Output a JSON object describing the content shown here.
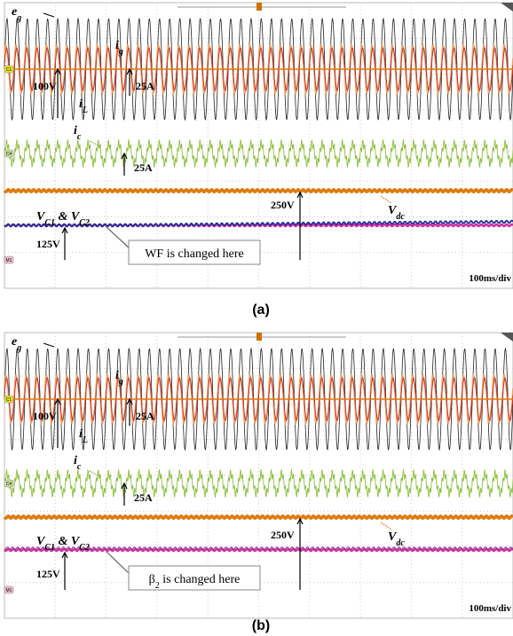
{
  "panels": [
    {
      "caption": "(a)",
      "timebase": "100ms/div",
      "channel_tags": [
        "C1",
        "C4",
        "M1"
      ],
      "labels": [
        {
          "parts": [
            {
              "text": "e"
            },
            {
              "sub": "g"
            }
          ]
        },
        {
          "parts": [
            {
              "text": "i"
            },
            {
              "sub": "g"
            }
          ]
        },
        {
          "parts": [
            {
              "text": "i"
            },
            {
              "sub": "L"
            }
          ]
        },
        {
          "parts": [
            {
              "text": "100V"
            }
          ]
        },
        {
          "parts": [
            {
              "text": "25A"
            }
          ]
        },
        {
          "parts": [
            {
              "text": "i"
            },
            {
              "sub": "c"
            }
          ]
        },
        {
          "parts": [
            {
              "text": "25A"
            }
          ]
        },
        {
          "parts": [
            {
              "text": "250V"
            }
          ]
        },
        {
          "parts": [
            {
              "text": "V"
            },
            {
              "sub": "dc"
            }
          ]
        },
        {
          "parts": [
            {
              "text": "V"
            },
            {
              "sub": "C1"
            },
            {
              "text": " & V"
            },
            {
              "sub": "C2"
            }
          ]
        },
        {
          "parts": [
            {
              "text": "125V"
            }
          ]
        }
      ],
      "note": {
        "parts": [
          {
            "text": "WF is changed here"
          }
        ]
      }
    },
    {
      "caption": "(b)",
      "timebase": "100ms/div",
      "channel_tags": [
        "C1",
        "C4",
        "M1"
      ],
      "labels": [
        {
          "parts": [
            {
              "text": "e"
            },
            {
              "sub": "g"
            }
          ]
        },
        {
          "parts": [
            {
              "text": "i"
            },
            {
              "sub": "g"
            }
          ]
        },
        {
          "parts": [
            {
              "text": "i"
            },
            {
              "sub": "L"
            }
          ]
        },
        {
          "parts": [
            {
              "text": "100V"
            }
          ]
        },
        {
          "parts": [
            {
              "text": "25A"
            }
          ]
        },
        {
          "parts": [
            {
              "text": "i"
            },
            {
              "sub": "c"
            }
          ]
        },
        {
          "parts": [
            {
              "text": "25A"
            }
          ]
        },
        {
          "parts": [
            {
              "text": "250V"
            }
          ]
        },
        {
          "parts": [
            {
              "text": "V"
            },
            {
              "sub": "dc"
            }
          ]
        },
        {
          "parts": [
            {
              "text": "V"
            },
            {
              "sub": "C1"
            },
            {
              "text": " & V"
            },
            {
              "sub": "C2"
            }
          ]
        },
        {
          "parts": [
            {
              "text": "125V"
            }
          ]
        }
      ],
      "note": {
        "parts": [
          {
            "text": "β"
          },
          {
            "sub": "2"
          },
          {
            "text": " is changed here"
          }
        ]
      }
    }
  ]
}
